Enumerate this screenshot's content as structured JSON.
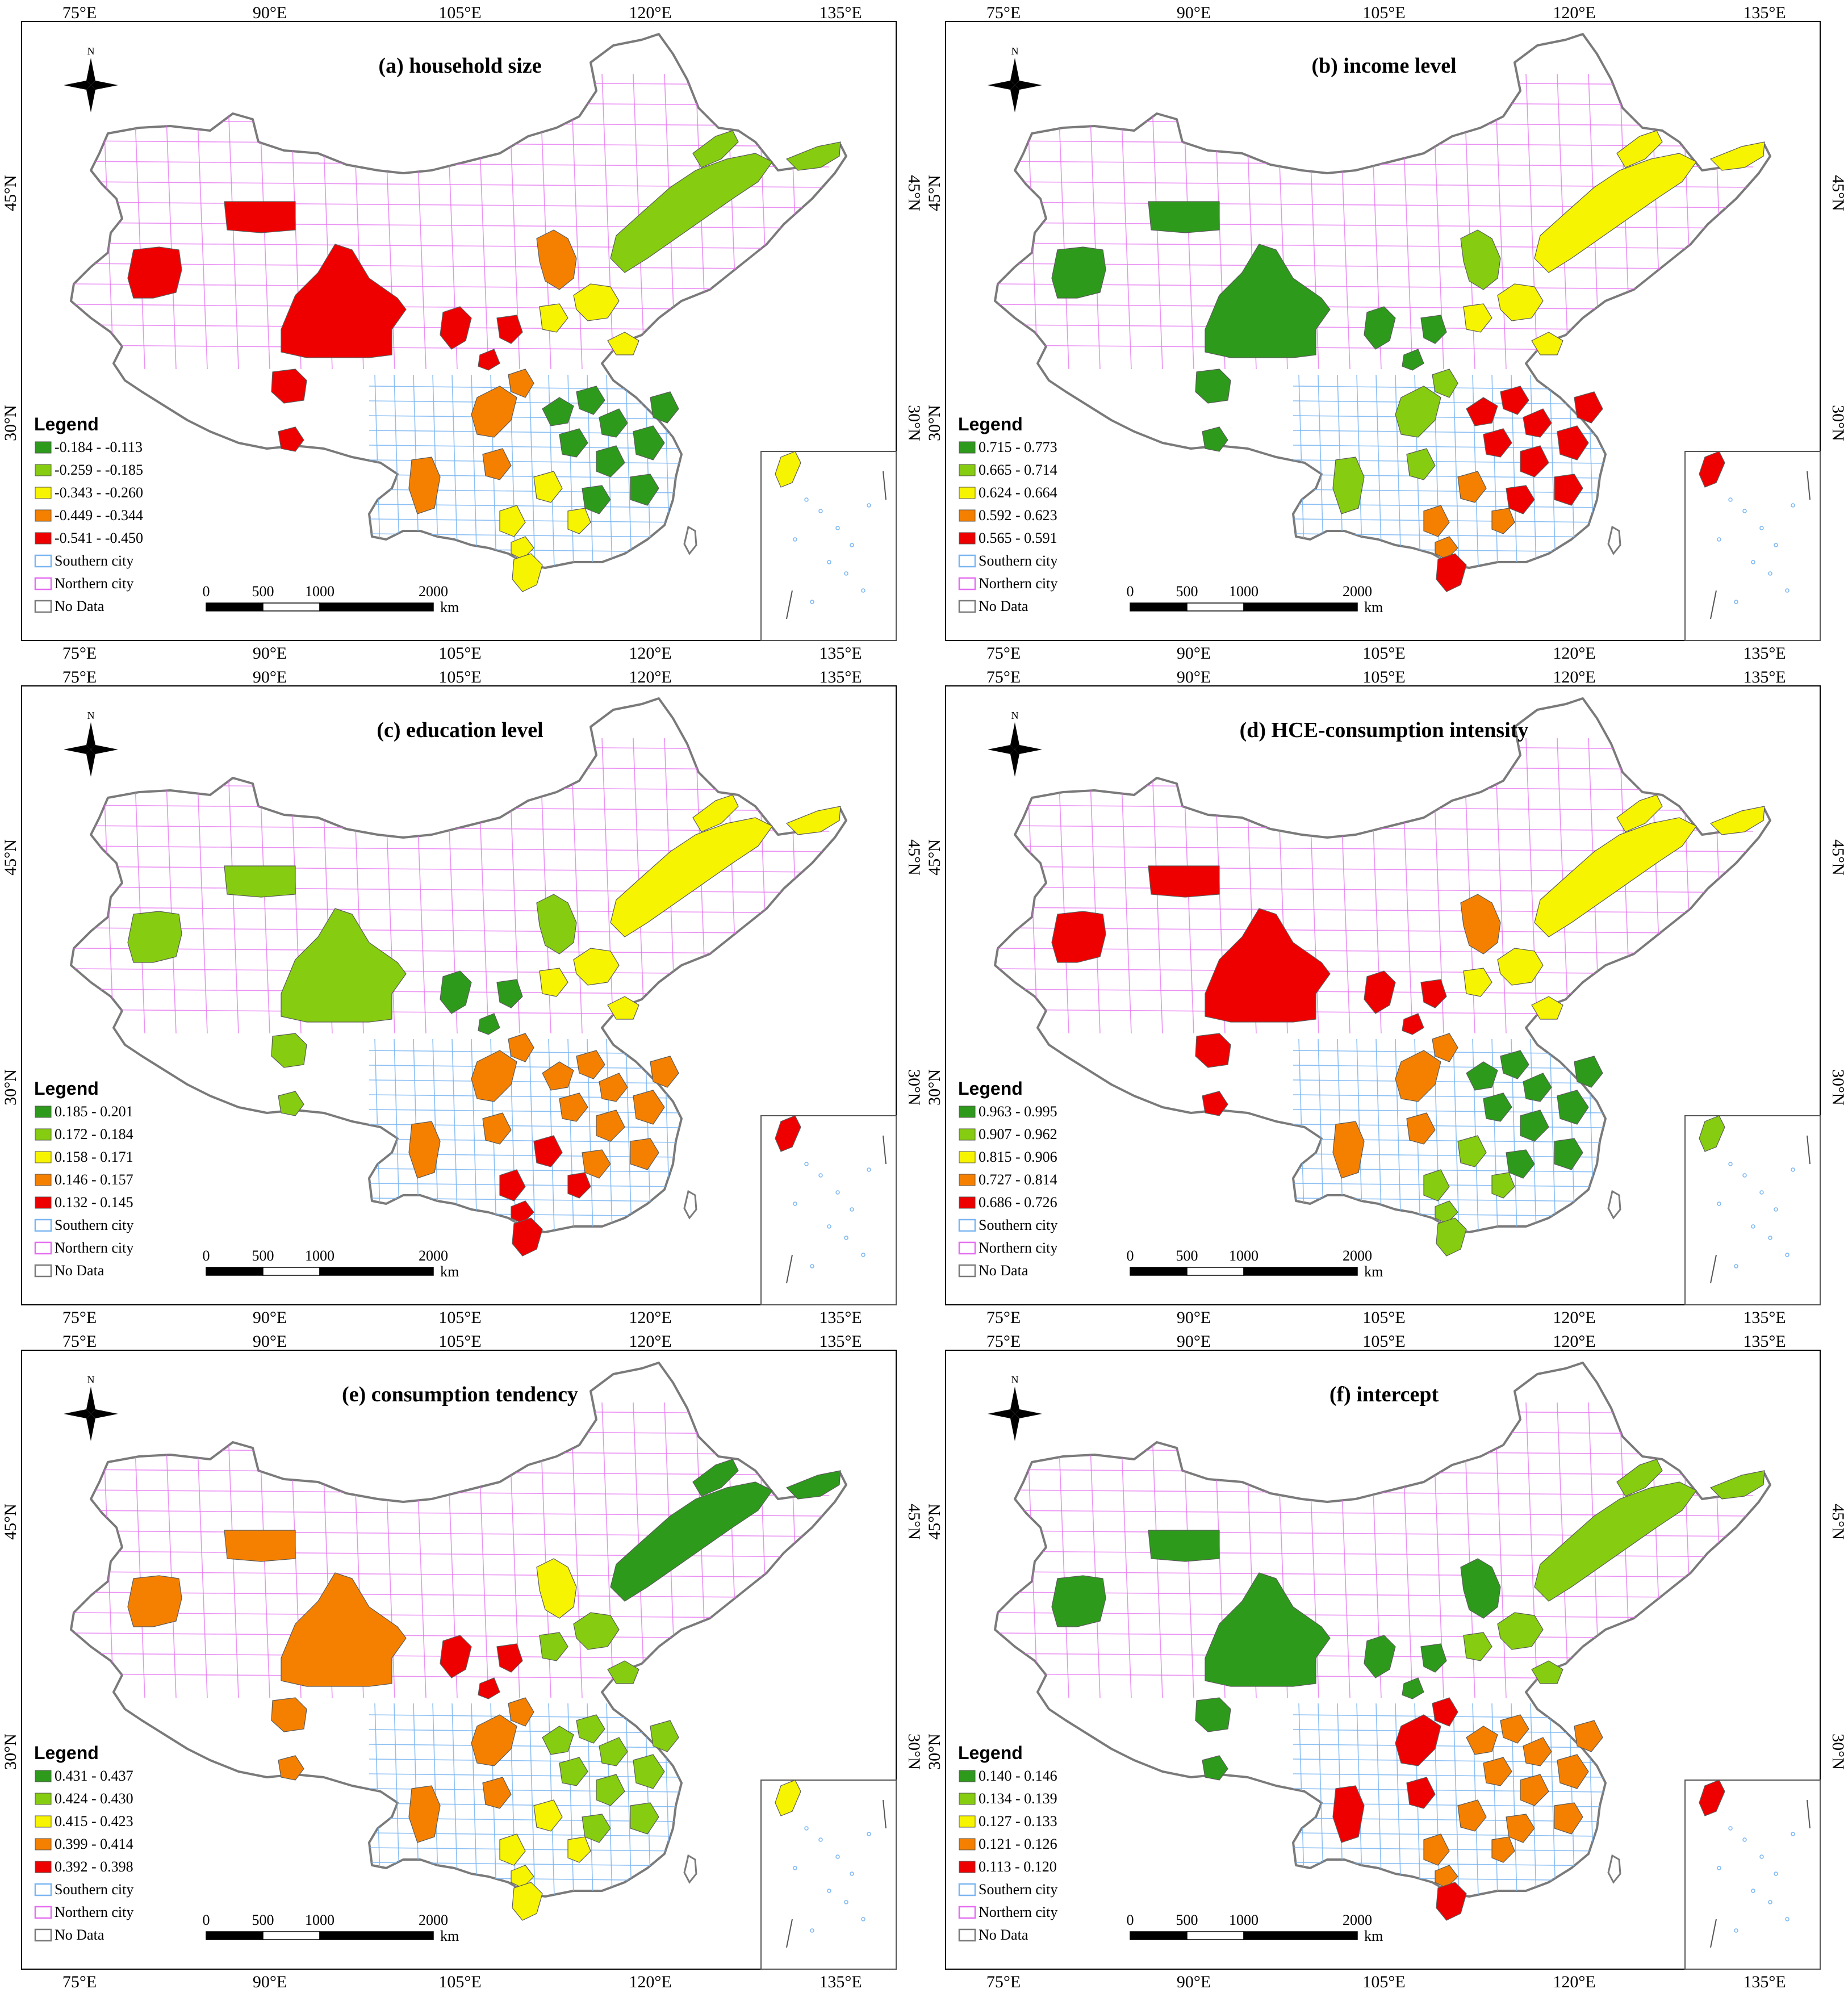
{
  "figure": {
    "colors": {
      "class1": "#2e9a1c",
      "class2": "#86cc10",
      "class3": "#f6f400",
      "class4": "#f58000",
      "class5": "#ee0000",
      "southern": "#7ab6f2",
      "northern": "#e46ef0",
      "nodata": "#7a7a7a"
    },
    "common": {
      "legend_heading": "Legend",
      "southern_label": "Southern city",
      "northern_label": "Northern city",
      "nodata_label": "No Data",
      "north_label": "N",
      "scale_ticks": [
        "0",
        "500",
        "1000",
        "2000"
      ],
      "scale_unit": "km",
      "lon_ticks": [
        "75°E",
        "90°E",
        "105°E",
        "120°E",
        "135°E"
      ],
      "lat_ticks": [
        "45°N",
        "30°N"
      ]
    },
    "panels": [
      {
        "title": "(a) household size",
        "classes": [
          "-0.184 - -0.113",
          "-0.259 - -0.185",
          "-0.343 - -0.260",
          "-0.449 - -0.344",
          "-0.541 - -0.450"
        ],
        "regions": {
          "northeast": 2,
          "inner_mongolia": 4,
          "north_china": 3,
          "central_east": 1,
          "central_south": 3,
          "sichuan": 4,
          "northwest": 5,
          "xinjiang": 5,
          "hainan": 3,
          "islands": 3
        }
      },
      {
        "title": "(b) income level",
        "classes": [
          "0.715 - 0.773",
          "0.665 - 0.714",
          "0.624 - 0.664",
          "0.592 - 0.623",
          "0.565 - 0.591"
        ],
        "regions": {
          "northeast": 3,
          "inner_mongolia": 2,
          "north_china": 3,
          "central_east": 5,
          "central_south": 4,
          "sichuan": 2,
          "northwest": 1,
          "xinjiang": 1,
          "hainan": 5,
          "islands": 5
        }
      },
      {
        "title": "(c) education level",
        "classes": [
          "0.185 - 0.201",
          "0.172 - 0.184",
          "0.158 - 0.171",
          "0.146 - 0.157",
          "0.132 - 0.145"
        ],
        "regions": {
          "northeast": 3,
          "inner_mongolia": 2,
          "north_china": 3,
          "central_east": 4,
          "central_south": 5,
          "sichuan": 4,
          "northwest": 1,
          "xinjiang": 2,
          "hainan": 5,
          "islands": 5
        }
      },
      {
        "title": "(d) HCE-consumption intensity",
        "classes": [
          "0.963 - 0.995",
          "0.907 - 0.962",
          "0.815 - 0.906",
          "0.727 - 0.814",
          "0.686 - 0.726"
        ],
        "regions": {
          "northeast": 3,
          "inner_mongolia": 4,
          "north_china": 3,
          "central_east": 1,
          "central_south": 2,
          "sichuan": 4,
          "northwest": 5,
          "xinjiang": 5,
          "hainan": 2,
          "islands": 2
        }
      },
      {
        "title": "(e) consumption tendency",
        "classes": [
          "0.431 - 0.437",
          "0.424 - 0.430",
          "0.415 - 0.423",
          "0.399 - 0.414",
          "0.392 - 0.398"
        ],
        "regions": {
          "northeast": 1,
          "inner_mongolia": 3,
          "north_china": 2,
          "central_east": 2,
          "central_south": 3,
          "sichuan": 4,
          "northwest": 5,
          "xinjiang": 4,
          "hainan": 3,
          "islands": 3
        }
      },
      {
        "title": "(f) intercept",
        "classes": [
          "0.140 - 0.146",
          "0.134 - 0.139",
          "0.127 - 0.133",
          "0.121 - 0.126",
          "0.113 - 0.120"
        ],
        "regions": {
          "northeast": 2,
          "inner_mongolia": 1,
          "north_china": 2,
          "central_east": 4,
          "central_south": 4,
          "sichuan": 5,
          "northwest": 1,
          "xinjiang": 1,
          "hainan": 5,
          "islands": 5
        }
      }
    ]
  }
}
